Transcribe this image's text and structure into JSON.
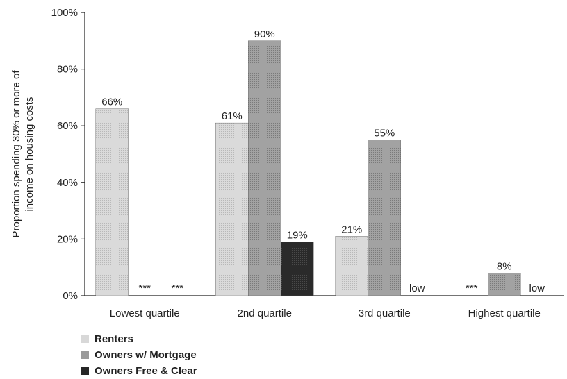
{
  "chart_data": {
    "type": "bar",
    "ylabel_lines": [
      "Proportion spending 30% or more of",
      "income on housing costs"
    ],
    "categories": [
      "Lowest quartile",
      "2nd quartile",
      "3rd quartile",
      "Highest quartile"
    ],
    "ylim": [
      0,
      100
    ],
    "yticks": [
      {
        "value": 0,
        "label": "0%"
      },
      {
        "value": 20,
        "label": "20%"
      },
      {
        "value": 40,
        "label": "40%"
      },
      {
        "value": 60,
        "label": "60%"
      },
      {
        "value": 80,
        "label": "80%"
      },
      {
        "value": 100,
        "label": "100%"
      }
    ],
    "series": [
      {
        "name": "Renters",
        "color": "#d6d6d6",
        "values": [
          66,
          61,
          21,
          null
        ],
        "labels": [
          "66%",
          "61%",
          "21%",
          "***"
        ]
      },
      {
        "name": "Owners w/ Mortgage",
        "color": "#9c9c9c",
        "values": [
          null,
          90,
          55,
          8
        ],
        "labels": [
          "***",
          "90%",
          "55%",
          "8%"
        ]
      },
      {
        "name": "Owners Free & Clear",
        "color": "#262626",
        "values": [
          null,
          19,
          null,
          null
        ],
        "labels": [
          "***",
          "19%",
          "low",
          "low"
        ]
      }
    ],
    "grid": false,
    "legend_position": "bottom-left"
  }
}
